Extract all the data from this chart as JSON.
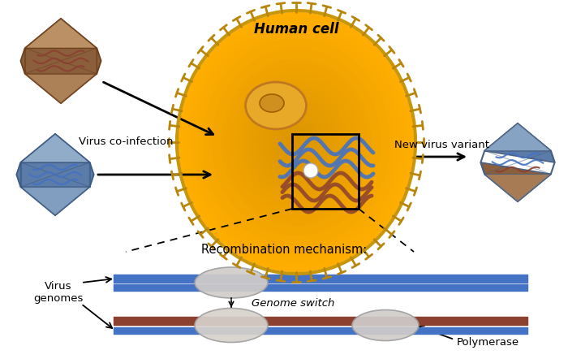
{
  "bg_color": "#ffffff",
  "human_cell_label": "Human cell",
  "virus_coinfection_label": "Virus co-infection",
  "new_virus_variant_label": "New virus variant",
  "recombination_label": "Recombination mechanism:",
  "virus_genomes_label": "Virus\ngenomes",
  "genome_switch_label": "Genome switch",
  "polymerase_label": "Polymerase",
  "blue_color": "#4472C4",
  "brown_virus_face": "#8B5E3C",
  "brown_virus_edge": "#6B3E1C",
  "brown_virus_light": "#C49A6C",
  "blue_virus_face": "#5B7BA8",
  "blue_virus_edge": "#3A5880",
  "blue_virus_light": "#9BB5D0",
  "cell_fill": "#F5C030",
  "cell_membrane": "#B8860B",
  "nucleus_fill": "#E8A020",
  "strand_blue": "#4472C4",
  "strand_brown": "#8B4030",
  "poly_fill": "#D0CCCA",
  "poly_edge": "#A0A0A0"
}
